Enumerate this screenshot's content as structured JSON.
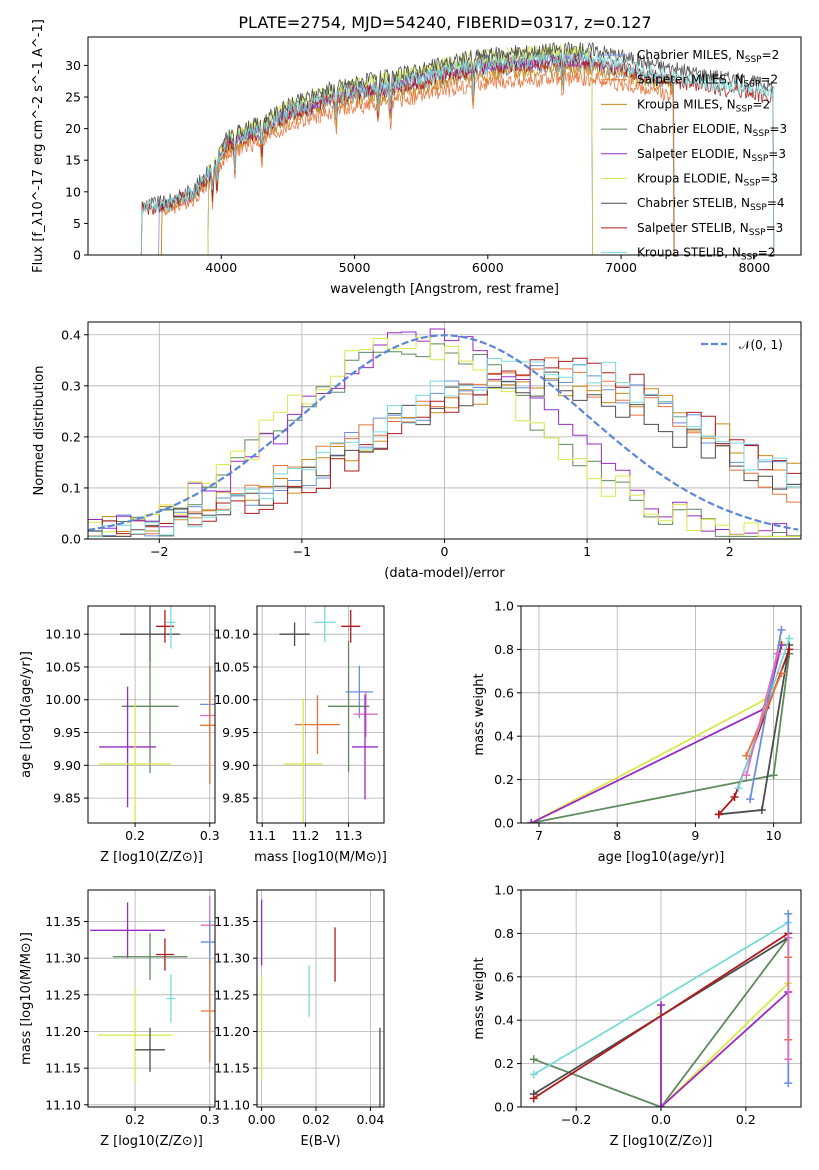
{
  "title": "PLATE=2754, MJD=54240, FIBERID=0317, z=0.127",
  "colors": {
    "Chabrier MILES": "#6a8fdc",
    "Salpeter MILES": "#e8743b",
    "Kroupa MILES": "#c98a1a",
    "Chabrier ELODIE": "#5e8a5e",
    "Salpeter ELODIE": "#9a2bc0",
    "Kroupa ELODIE": "#d9e84a",
    "Chabrier STELIB": "#4d4d4d",
    "Salpeter STELIB": "#b01a1a",
    "Kroupa STELIB": "#7ad9d9",
    "pink": "#e070c0",
    "gauss": "#5b87d6"
  },
  "chart_data": [
    {
      "id": "spectrum",
      "type": "line",
      "xlabel": "wavelength [Angstrom, rest frame]",
      "ylabel": "Flux [f_λ10^-17 erg cm^-2 s^-1 A^-1]",
      "xlim": [
        3000,
        8350
      ],
      "ylim": [
        0,
        34.5
      ],
      "xticks": [
        4000,
        5000,
        6000,
        7000,
        8000
      ],
      "yticks": [
        0,
        5,
        10,
        15,
        20,
        25,
        30
      ],
      "legend_position": "upper-right",
      "continuum": {
        "x": [
          3400,
          3600,
          3800,
          3950,
          4050,
          4300,
          4500,
          4800,
          5000,
          5300,
          5600,
          5900,
          6200,
          6500,
          6800,
          7100,
          7400,
          7700,
          8000,
          8150
        ],
        "y": [
          7.5,
          8,
          10,
          14,
          18,
          20,
          22.5,
          25,
          26,
          27,
          28.5,
          30,
          30.5,
          31,
          31,
          29.5,
          28,
          27,
          26,
          25.5
        ]
      },
      "series": [
        {
          "name": "Chabrier MILES",
          "nssp": "2",
          "x_range": [
            3530,
            7400
          ],
          "scale": 0.97
        },
        {
          "name": "Salpeter MILES",
          "nssp": "2",
          "x_range": [
            3550,
            7400
          ],
          "scale": 0.9
        },
        {
          "name": "Kroupa MILES",
          "nssp": "2",
          "x_range": [
            3550,
            7400
          ],
          "scale": 0.95
        },
        {
          "name": "Chabrier ELODIE",
          "nssp": "3",
          "x_range": [
            3900,
            6790
          ],
          "scale": 1.02
        },
        {
          "name": "Salpeter ELODIE",
          "nssp": "3",
          "x_range": [
            3900,
            6790
          ],
          "scale": 1.0
        },
        {
          "name": "Kroupa ELODIE",
          "nssp": "3",
          "x_range": [
            3900,
            6790
          ],
          "scale": 1.04
        },
        {
          "name": "Chabrier STELIB",
          "nssp": "4",
          "x_range": [
            3400,
            8150
          ],
          "scale": 1.05
        },
        {
          "name": "Salpeter STELIB",
          "nssp": "3",
          "x_range": [
            3400,
            8150
          ],
          "scale": 0.98
        },
        {
          "name": "Kroupa STELIB",
          "nssp": "2",
          "x_range": [
            3400,
            8150
          ],
          "scale": 1.0
        }
      ]
    },
    {
      "id": "residual_hist",
      "type": "histogram",
      "xlabel": "(data-model)/error",
      "ylabel": "Normed distribution",
      "xlim": [
        -2.5,
        2.5
      ],
      "ylim": [
        0,
        0.425
      ],
      "xticks": [
        -2,
        -1,
        0,
        1,
        2
      ],
      "yticks": [
        0.0,
        0.1,
        0.2,
        0.3,
        0.4
      ],
      "legend": "𝒩(0, 1)",
      "legend_position": "upper-right",
      "bin_width": 0.1,
      "gaussian": {
        "mean": 0,
        "sigma": 1
      },
      "series": [
        {
          "name": "Chabrier MILES",
          "mean": 0.7,
          "sigma": 1.25,
          "amp": 0.32,
          "seed": 1
        },
        {
          "name": "Salpeter MILES",
          "mean": 0.6,
          "sigma": 1.2,
          "amp": 0.33,
          "seed": 2
        },
        {
          "name": "Kroupa MILES",
          "mean": 0.75,
          "sigma": 1.3,
          "amp": 0.31,
          "seed": 3
        },
        {
          "name": "Chabrier ELODIE",
          "mean": -0.2,
          "sigma": 0.9,
          "amp": 0.38,
          "seed": 4
        },
        {
          "name": "Salpeter ELODIE",
          "mean": -0.15,
          "sigma": 0.9,
          "amp": 0.39,
          "seed": 5
        },
        {
          "name": "Kroupa ELODIE",
          "mean": -0.25,
          "sigma": 0.9,
          "amp": 0.38,
          "seed": 6
        },
        {
          "name": "Chabrier STELIB",
          "mean": 0.6,
          "sigma": 1.2,
          "amp": 0.3,
          "seed": 7
        },
        {
          "name": "Salpeter STELIB",
          "mean": 0.8,
          "sigma": 1.2,
          "amp": 0.33,
          "seed": 8
        },
        {
          "name": "Kroupa STELIB",
          "mean": 0.7,
          "sigma": 1.2,
          "amp": 0.34,
          "seed": 9
        }
      ]
    },
    {
      "id": "age_vs_Z",
      "type": "errorbar",
      "xlabel": "Z [log10(Z/Z⊙)]",
      "ylabel": "age [log10(age/yr)]",
      "xlim": [
        0.137,
        0.307
      ],
      "ylim": [
        9.812,
        10.143
      ],
      "xticks": [
        0.2,
        0.3
      ],
      "xtick_labels": [
        "0.2",
        "0.3"
      ],
      "yticks": [
        9.85,
        9.9,
        9.95,
        10.0,
        10.05,
        10.1
      ],
      "points": [
        {
          "c": "Chabrier STELIB",
          "x": 0.22,
          "y": 10.1,
          "xerr": 0.04,
          "yerr": 0.042
        },
        {
          "c": "Salpeter STELIB",
          "x": 0.24,
          "y": 10.112,
          "xerr": 0.012,
          "yerr": 0.025
        },
        {
          "c": "Kroupa STELIB",
          "x": 0.248,
          "y": 10.118,
          "xerr": 0.006,
          "yerr": 0.04
        },
        {
          "c": "Chabrier MILES",
          "x": 0.3,
          "y": 9.993,
          "xerr": 0.013,
          "yerr": 0.035
        },
        {
          "c": "pink",
          "x": 0.3,
          "y": 9.976,
          "xerr": 0.013,
          "yerr": 0.03
        },
        {
          "c": "Salpeter MILES",
          "x": 0.3,
          "y": 9.961,
          "xerr": 0.013,
          "yerr": 0.09
        },
        {
          "c": "Chabrier ELODIE",
          "x": 0.22,
          "y": 9.99,
          "xerr": 0.038,
          "yerr": 0.102
        },
        {
          "c": "Salpeter ELODIE",
          "x": 0.19,
          "y": 9.928,
          "xerr": 0.038,
          "yerr": 0.092
        },
        {
          "c": "Kroupa ELODIE",
          "x": 0.2,
          "y": 9.902,
          "xerr": 0.048,
          "yerr": 0.092
        }
      ]
    },
    {
      "id": "age_vs_mass",
      "type": "errorbar",
      "xlabel": "mass [log10(M/M⊙)]",
      "ylabel": "",
      "xlim": [
        11.088,
        11.382
      ],
      "ylim": [
        9.812,
        10.143
      ],
      "xticks": [
        11.1,
        11.2,
        11.3
      ],
      "xtick_labels": [
        "11.1",
        "11.2",
        "11.3"
      ],
      "yticks": [
        9.85,
        9.9,
        9.95,
        10.0,
        10.05,
        10.1
      ],
      "points": [
        {
          "c": "Chabrier STELIB",
          "x": 11.175,
          "y": 10.1,
          "xerr": 0.035,
          "yerr": 0.018
        },
        {
          "c": "Kroupa STELIB",
          "x": 11.245,
          "y": 10.118,
          "xerr": 0.025,
          "yerr": 0.03
        },
        {
          "c": "Salpeter STELIB",
          "x": 11.305,
          "y": 10.112,
          "xerr": 0.022,
          "yerr": 0.025
        },
        {
          "c": "Chabrier MILES",
          "x": 11.325,
          "y": 10.012,
          "xerr": 0.032,
          "yerr": 0.04
        },
        {
          "c": "pink",
          "x": 11.34,
          "y": 9.978,
          "xerr": 0.028,
          "yerr": 0.035
        },
        {
          "c": "Salpeter MILES",
          "x": 11.228,
          "y": 9.962,
          "xerr": 0.052,
          "yerr": 0.045
        },
        {
          "c": "Chabrier ELODIE",
          "x": 11.3,
          "y": 9.99,
          "xerr": 0.048,
          "yerr": 0.1
        },
        {
          "c": "Salpeter ELODIE",
          "x": 11.338,
          "y": 9.928,
          "xerr": 0.03,
          "yerr": 0.08
        },
        {
          "c": "Kroupa ELODIE",
          "x": 11.195,
          "y": 9.902,
          "xerr": 0.045,
          "yerr": 0.1
        }
      ]
    },
    {
      "id": "weight_vs_age",
      "type": "line",
      "xlabel": "age [log10(age/yr)]",
      "ylabel": "mass weight",
      "xlim": [
        6.77,
        10.35
      ],
      "ylim": [
        0,
        1.0
      ],
      "xticks": [
        7,
        8,
        9,
        10
      ],
      "yticks": [
        0.0,
        0.2,
        0.4,
        0.6,
        0.8,
        1.0
      ],
      "series": [
        {
          "c": "Chabrier ELODIE",
          "points": [
            [
              6.9,
              0.0
            ],
            [
              10.0,
              0.22
            ],
            [
              10.2,
              0.78
            ]
          ]
        },
        {
          "c": "Kroupa ELODIE",
          "points": [
            [
              6.9,
              0.0
            ],
            [
              9.9,
              0.57
            ],
            [
              10.1,
              0.83
            ]
          ]
        },
        {
          "c": "Salpeter ELODIE",
          "points": [
            [
              6.9,
              0.0
            ],
            [
              9.9,
              0.53
            ],
            [
              10.1,
              0.82
            ]
          ]
        },
        {
          "c": "Chabrier STELIB",
          "points": [
            [
              9.3,
              0.04
            ],
            [
              9.85,
              0.06
            ],
            [
              10.2,
              0.82
            ]
          ]
        },
        {
          "c": "Salpeter STELIB",
          "points": [
            [
              9.3,
              0.04
            ],
            [
              9.5,
              0.12
            ],
            [
              10.2,
              0.8
            ]
          ]
        },
        {
          "c": "Kroupa STELIB",
          "points": [
            [
              9.55,
              0.16
            ],
            [
              10.2,
              0.85
            ]
          ]
        },
        {
          "c": "Chabrier MILES",
          "points": [
            [
              9.7,
              0.11
            ],
            [
              10.1,
              0.89
            ]
          ]
        },
        {
          "c": "Salpeter MILES",
          "points": [
            [
              9.65,
              0.31
            ],
            [
              10.1,
              0.69
            ]
          ]
        },
        {
          "c": "pink",
          "points": [
            [
              9.65,
              0.22
            ],
            [
              10.05,
              0.78
            ]
          ]
        }
      ]
    },
    {
      "id": "mass_vs_Z",
      "type": "errorbar",
      "xlabel": "Z [log10(Z/Z⊙)]",
      "ylabel": "mass [log10(M/M⊙)]",
      "xlim": [
        0.137,
        0.307
      ],
      "ylim": [
        11.097,
        11.393
      ],
      "xticks": [
        0.2,
        0.3
      ],
      "xtick_labels": [
        "0.2",
        "0.3"
      ],
      "yticks": [
        11.1,
        11.15,
        11.2,
        11.25,
        11.3,
        11.35
      ],
      "points": [
        {
          "c": "Salpeter ELODIE",
          "x": 0.19,
          "y": 11.338,
          "xerr": 0.05,
          "yerr": 0.038
        },
        {
          "c": "Chabrier ELODIE",
          "x": 0.22,
          "y": 11.302,
          "xerr": 0.05,
          "yerr": 0.032
        },
        {
          "c": "Salpeter STELIB",
          "x": 0.24,
          "y": 11.305,
          "xerr": 0.012,
          "yerr": 0.022
        },
        {
          "c": "Kroupa STELIB",
          "x": 0.248,
          "y": 11.245,
          "xerr": 0.006,
          "yerr": 0.033
        },
        {
          "c": "Kroupa ELODIE",
          "x": 0.2,
          "y": 11.195,
          "xerr": 0.05,
          "yerr": 0.066
        },
        {
          "c": "Chabrier STELIB",
          "x": 0.22,
          "y": 11.175,
          "xerr": 0.02,
          "yerr": 0.03
        },
        {
          "c": "pink",
          "x": 0.3,
          "y": 11.345,
          "xerr": 0.012,
          "yerr": 0.04
        },
        {
          "c": "Chabrier MILES",
          "x": 0.3,
          "y": 11.322,
          "xerr": 0.012,
          "yerr": 0.03
        },
        {
          "c": "Salpeter MILES",
          "x": 0.3,
          "y": 11.228,
          "xerr": 0.012,
          "yerr": 0.07
        }
      ]
    },
    {
      "id": "mass_vs_EBV",
      "type": "errorbar",
      "xlabel": "E(B-V)",
      "ylabel": "",
      "xlim": [
        -0.0017,
        0.045
      ],
      "ylim": [
        11.097,
        11.393
      ],
      "xticks": [
        0.0,
        0.02,
        0.04
      ],
      "xtick_labels": [
        "0.00",
        "0.02",
        "0.04"
      ],
      "yticks": [
        11.1,
        11.15,
        11.2,
        11.25,
        11.3,
        11.35
      ],
      "points": [
        {
          "c": "Salpeter ELODIE",
          "x": 0.0,
          "y": 11.335,
          "xerr": 0,
          "yerr": 0.045
        },
        {
          "c": "Kroupa ELODIE",
          "x": 0.0,
          "y": 11.205,
          "xerr": 0,
          "yerr": 0.07
        },
        {
          "c": "Kroupa STELIB",
          "x": 0.0175,
          "y": 11.255,
          "xerr": 0,
          "yerr": 0.035
        },
        {
          "c": "Salpeter STELIB",
          "x": 0.027,
          "y": 11.305,
          "xerr": 0,
          "yerr": 0.037
        },
        {
          "c": "Chabrier STELIB",
          "x": 0.0435,
          "y": 11.135,
          "xerr": 0,
          "yerr": 0.07
        }
      ]
    },
    {
      "id": "weight_vs_Z",
      "type": "line",
      "xlabel": "Z [log10(Z/Z⊙)]",
      "ylabel": "mass weight",
      "xlim": [
        -0.33,
        0.33
      ],
      "ylim": [
        0,
        1.0
      ],
      "xticks": [
        -0.2,
        0.0,
        0.2
      ],
      "xtick_labels": [
        "−0.2",
        "0.0",
        "0.2"
      ],
      "yticks": [
        0.0,
        0.2,
        0.4,
        0.6,
        0.8,
        1.0
      ],
      "series": [
        {
          "c": "Chabrier ELODIE",
          "points": [
            [
              -0.3,
              0.22
            ],
            [
              0.0,
              0.0
            ],
            [
              0.3,
              0.78
            ]
          ]
        },
        {
          "c": "Kroupa ELODIE",
          "points": [
            [
              0.0,
              0.43
            ],
            [
              0.0,
              0.0
            ],
            [
              0.3,
              0.57
            ]
          ]
        },
        {
          "c": "Salpeter ELODIE",
          "points": [
            [
              0.0,
              0.47
            ],
            [
              0.0,
              0.0
            ],
            [
              0.3,
              0.53
            ]
          ]
        },
        {
          "c": "Kroupa STELIB",
          "points": [
            [
              -0.3,
              0.15
            ],
            [
              0.3,
              0.85
            ]
          ]
        },
        {
          "c": "Chabrier STELIB",
          "points": [
            [
              -0.3,
              0.06
            ],
            [
              0.3,
              0.78
            ]
          ]
        },
        {
          "c": "Salpeter STELIB",
          "points": [
            [
              -0.3,
              0.04
            ],
            [
              0.3,
              0.8
            ]
          ]
        },
        {
          "c": "Chabrier MILES",
          "points": [
            [
              0.3,
              0.11
            ],
            [
              0.3,
              0.89
            ]
          ]
        },
        {
          "c": "Salpeter MILES",
          "points": [
            [
              0.3,
              0.31
            ],
            [
              0.3,
              0.69
            ]
          ]
        },
        {
          "c": "pink",
          "points": [
            [
              0.3,
              0.22
            ],
            [
              0.3,
              0.78
            ]
          ]
        }
      ]
    }
  ]
}
